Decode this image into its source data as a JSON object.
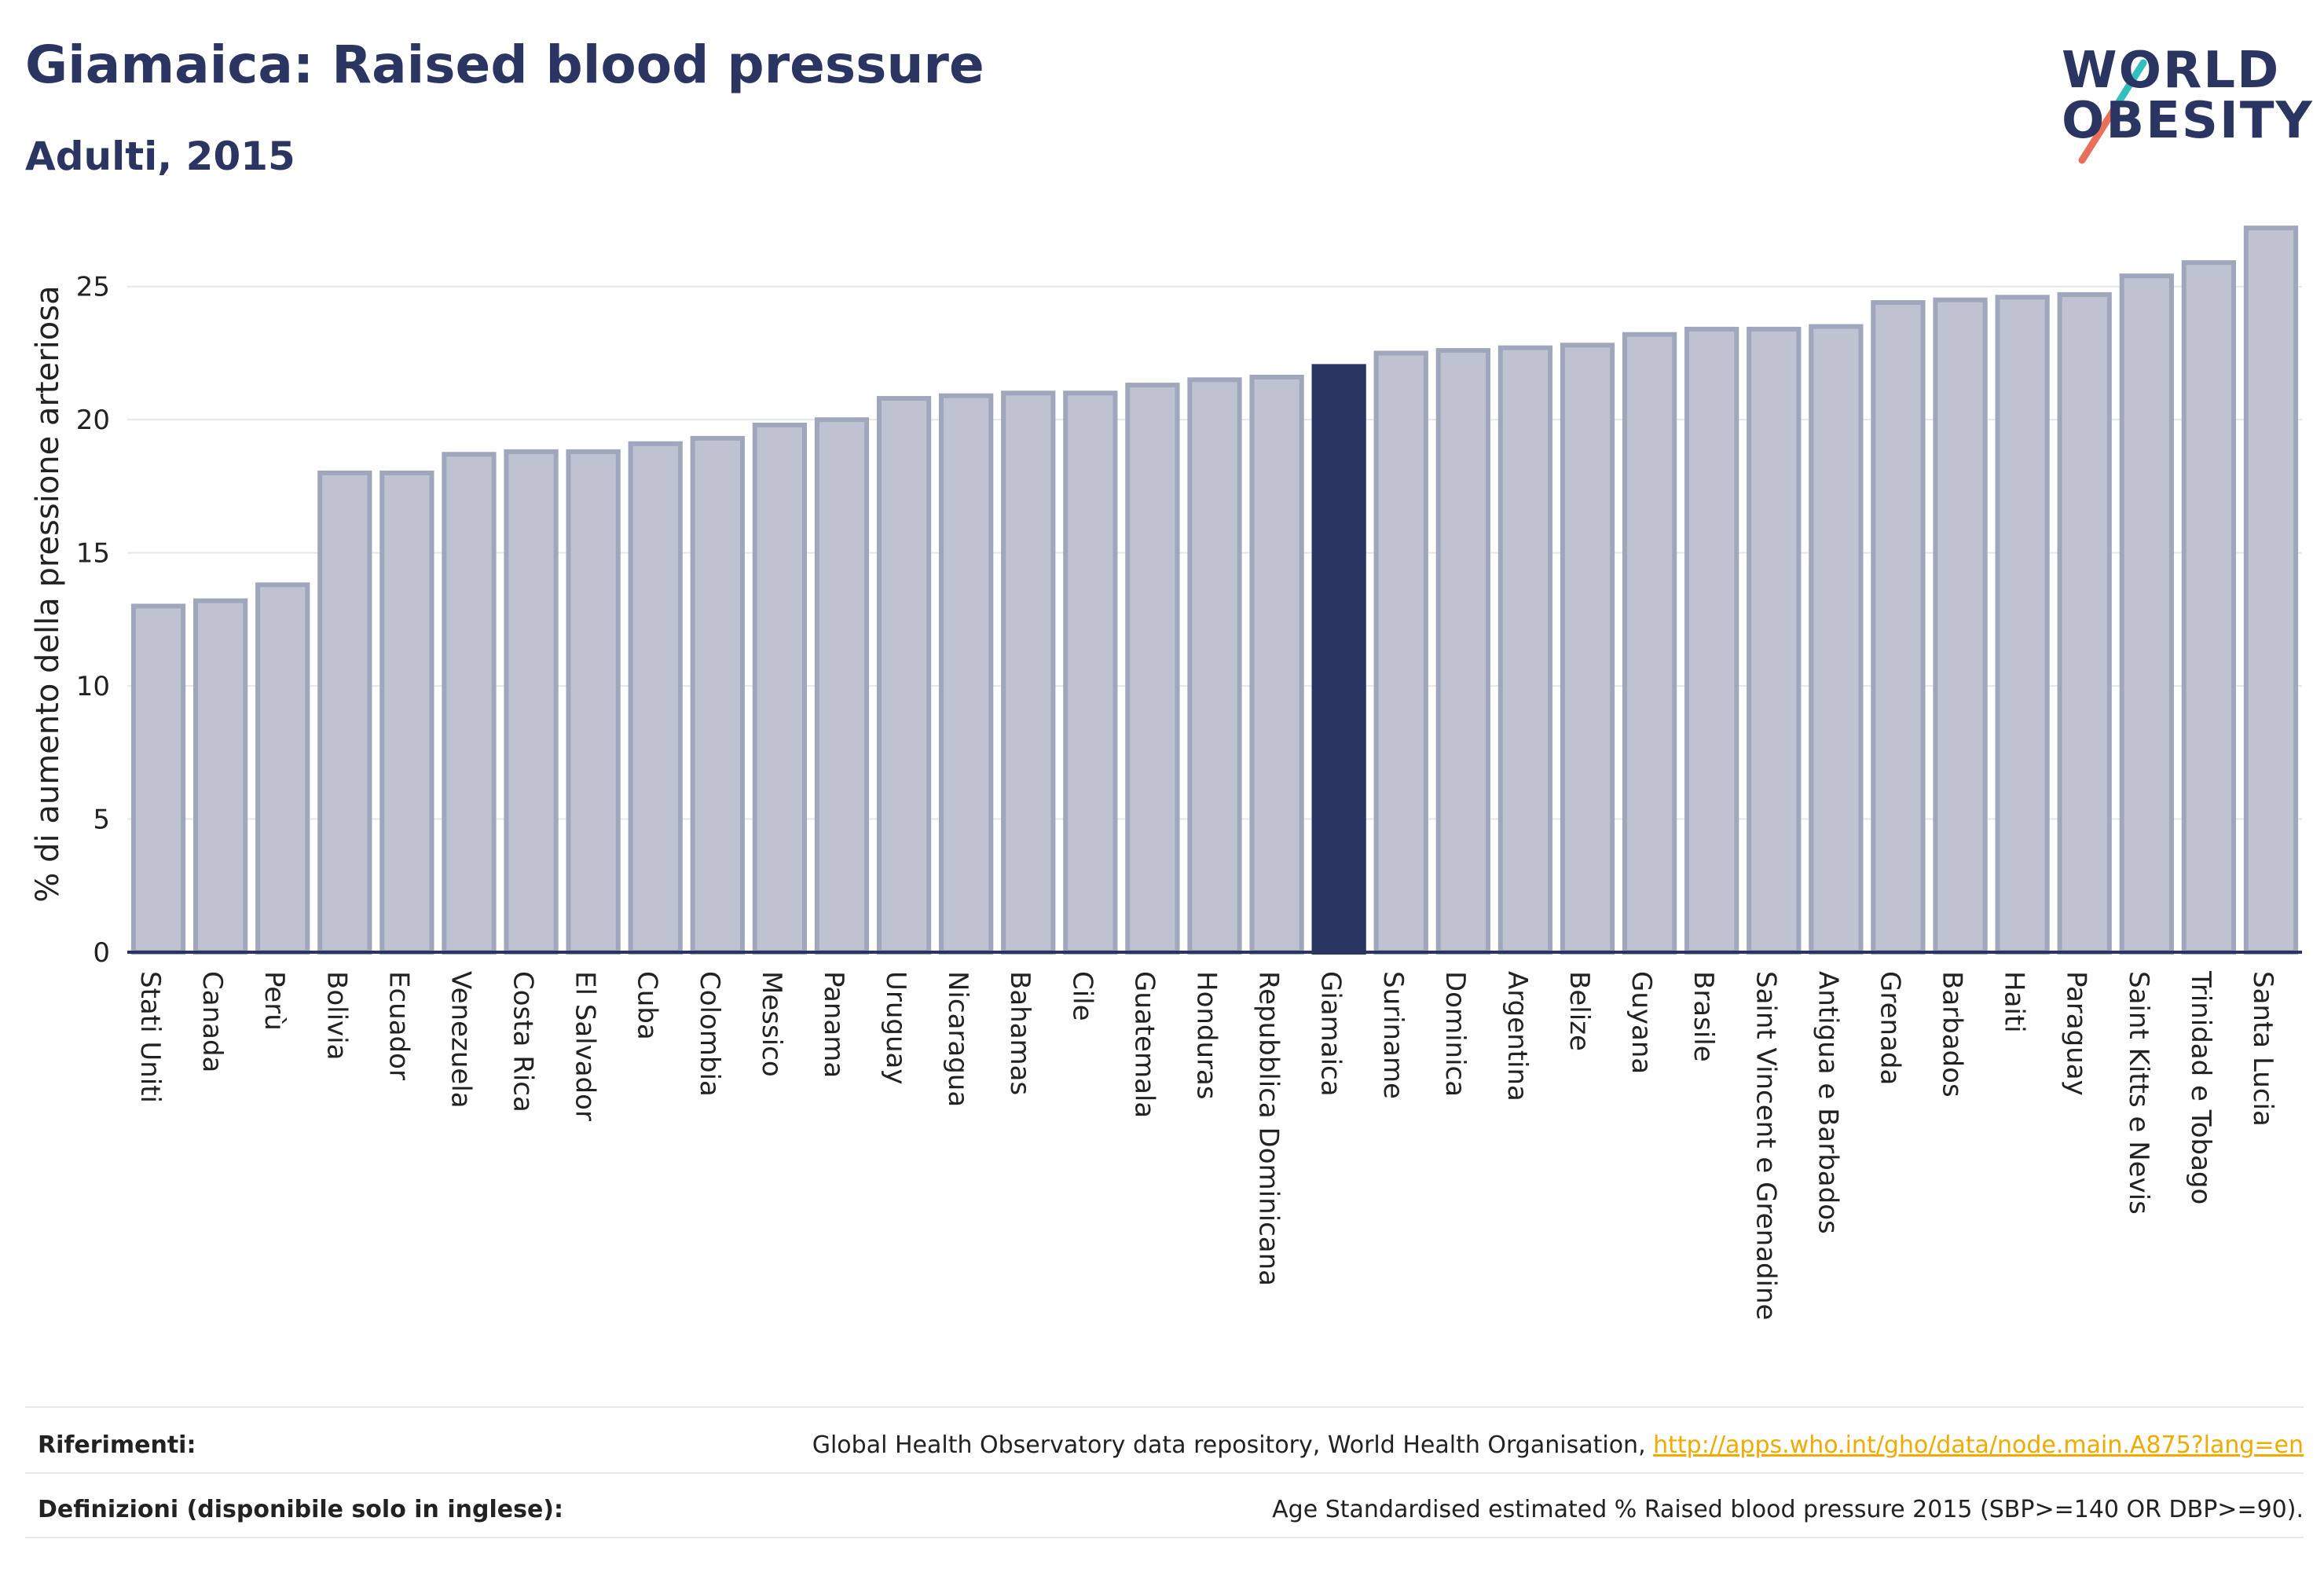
{
  "header": {
    "title": "Giamaica: Raised blood pressure",
    "subtitle": "Adulti, 2015"
  },
  "logo": {
    "line1": "WORLD",
    "line2": "OBESITY",
    "slash_colors": [
      "#e8705a",
      "#33bfbf"
    ]
  },
  "colors": {
    "bar_default": "#bfc3d1",
    "bar_default_stroke": "#a0a6bb",
    "bar_highlight": "#2b3562",
    "axis": "#2b3562",
    "grid": "#e6e7ee"
  },
  "chart_data": {
    "type": "bar",
    "title": "Giamaica: Raised blood pressure",
    "subtitle": "Adulti, 2015",
    "xlabel": "",
    "ylabel": "% di aumento della pressione arteriosa",
    "ylim": [
      0,
      27.5
    ],
    "yticks": [
      0,
      5,
      10,
      15,
      20,
      25
    ],
    "grid": true,
    "highlight": "Giamaica",
    "categories": [
      "Stati Uniti",
      "Canada",
      "Perù",
      "Bolivia",
      "Ecuador",
      "Venezuela",
      "Costa Rica",
      "El Salvador",
      "Cuba",
      "Colombia",
      "Messico",
      "Panama",
      "Uruguay",
      "Nicaragua",
      "Bahamas",
      "Cile",
      "Guatemala",
      "Honduras",
      "Repubblica Dominicana",
      "Giamaica",
      "Suriname",
      "Dominica",
      "Argentina",
      "Belize",
      "Guyana",
      "Brasile",
      "Saint Vincent e Grenadine",
      "Antigua e Barbados",
      "Grenada",
      "Barbados",
      "Haiti",
      "Paraguay",
      "Saint Kitts e Nevis",
      "Trinidad e Tobago",
      "Santa Lucia"
    ],
    "values": [
      13.0,
      13.2,
      13.8,
      18.0,
      18.0,
      18.7,
      18.8,
      18.8,
      19.1,
      19.3,
      19.8,
      20.0,
      20.8,
      20.9,
      21.0,
      21.0,
      21.3,
      21.5,
      21.6,
      22.0,
      22.5,
      22.6,
      22.7,
      22.8,
      23.2,
      23.4,
      23.4,
      23.5,
      24.4,
      24.5,
      24.6,
      24.7,
      25.4,
      25.9,
      27.2
    ]
  },
  "footer": {
    "references_label": "Riferimenti:",
    "references_text": "Global Health Observatory data repository, World Health Organisation, ",
    "references_link": "http://apps.who.int/gho/data/node.main.A875?lang=en",
    "definitions_label": "Definizioni (disponibile solo in inglese):",
    "definitions_text": "Age Standardised estimated % Raised blood pressure 2015 (SBP>=140 OR DBP>=90)."
  }
}
